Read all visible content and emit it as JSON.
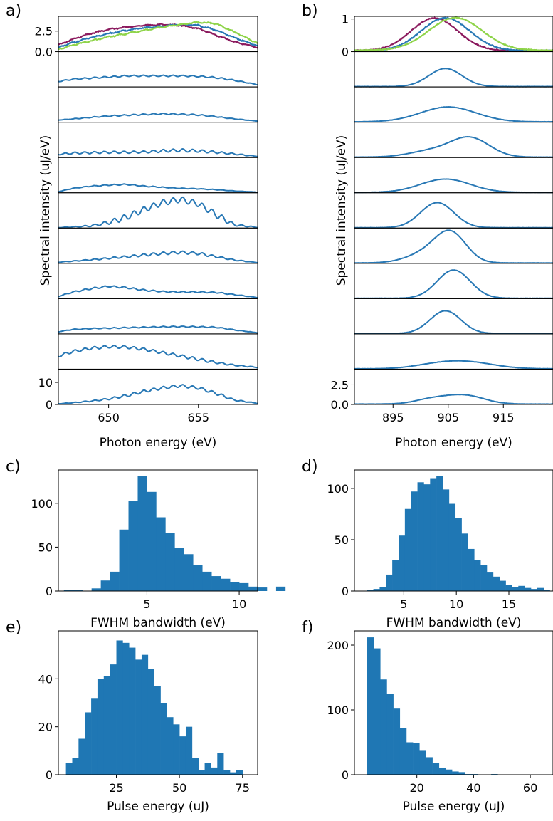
{
  "figure": {
    "panel_letters": [
      "a)",
      "b)",
      "c)",
      "d)",
      "e)",
      "f)"
    ],
    "colors": {
      "blue": "#2878b5",
      "purple": "#8b1a5e",
      "green": "#8fd44a",
      "hist": "#1f77b4",
      "axis": "#000000"
    }
  },
  "chart_data": [
    {
      "panel": "a)",
      "type": "line",
      "xlabel": "Photon energy (eV)",
      "ylabel": "Spectral intensity (uJ/eV)",
      "xlim": [
        647.2,
        658.3
      ],
      "xticks": [
        650,
        655
      ],
      "xticklabels": [
        "650",
        "655"
      ],
      "stack": [
        {
          "ylim": [
            0,
            4.3
          ],
          "yticks": [
            0,
            2.5
          ],
          "yticklabels": [
            "0.0",
            "2.5"
          ],
          "overlay": [
            {
              "color": "purple",
              "x": [
                647.2,
                648,
                649,
                650,
                651,
                652,
                653,
                654,
                655,
                656,
                657,
                658.3
              ],
              "y": [
                0.8,
                1.5,
                2.2,
                2.7,
                3.0,
                3.2,
                3.3,
                3.2,
                2.8,
                2.0,
                1.2,
                0.5
              ]
            },
            {
              "color": "blue",
              "x": [
                647.2,
                648,
                649,
                650,
                651,
                652,
                653,
                654,
                655,
                656,
                657,
                658.3
              ],
              "y": [
                0.5,
                1.1,
                1.7,
                2.2,
                2.6,
                2.9,
                3.1,
                3.3,
                3.2,
                2.6,
                1.7,
                0.7
              ]
            },
            {
              "color": "green",
              "x": [
                647.2,
                648,
                649,
                650,
                651,
                652,
                653,
                654,
                655,
                656,
                657,
                658.3
              ],
              "y": [
                0.3,
                0.8,
                1.3,
                1.8,
                2.2,
                2.6,
                3.0,
                3.3,
                3.6,
                3.4,
                2.4,
                1.0
              ]
            }
          ]
        },
        {
          "ylim": [
            0,
            16
          ],
          "x": [
            647.2,
            648,
            649,
            650,
            651,
            652,
            653,
            654,
            655,
            656,
            657,
            658.3
          ],
          "y": [
            2.5,
            3.5,
            4.0,
            4.5,
            5.0,
            5.0,
            5.0,
            5.0,
            4.8,
            4.2,
            3.0,
            1.0
          ],
          "ripple": 0.3
        },
        {
          "ylim": [
            0,
            16
          ],
          "x": [
            647.2,
            648,
            649,
            650,
            651,
            652,
            653,
            654,
            655,
            656,
            657,
            658.3
          ],
          "y": [
            1.0,
            1.5,
            2.2,
            2.8,
            3.2,
            3.5,
            3.8,
            3.6,
            3.3,
            2.5,
            1.5,
            0.5
          ],
          "ripple": 0.3
        },
        {
          "ylim": [
            0,
            16
          ],
          "x": [
            647.2,
            648,
            649,
            650,
            651,
            652,
            653,
            654,
            655,
            656,
            657,
            658.3
          ],
          "y": [
            1.5,
            2.0,
            2.2,
            2.4,
            2.4,
            2.5,
            3.0,
            3.3,
            3.0,
            2.4,
            1.6,
            0.5
          ],
          "ripple": 0.8
        },
        {
          "ylim": [
            0,
            16
          ],
          "x": [
            647.2,
            648,
            649,
            650,
            651,
            652,
            653,
            654,
            655,
            656,
            657,
            658.3
          ],
          "y": [
            0.5,
            2.0,
            3.0,
            3.5,
            3.8,
            3.0,
            2.5,
            2.0,
            1.8,
            1.4,
            0.8,
            0.3
          ],
          "ripple": 0.25
        },
        {
          "ylim": [
            0,
            16
          ],
          "x": [
            647.2,
            648,
            649,
            650,
            651,
            652,
            653,
            654,
            655,
            656,
            657,
            658.3
          ],
          "y": [
            0.2,
            0.5,
            1.0,
            2.5,
            5.0,
            8.5,
            11.5,
            13.0,
            11.0,
            6.0,
            1.5,
            0.3
          ],
          "ripple": 1.3
        },
        {
          "ylim": [
            0,
            16
          ],
          "x": [
            647.2,
            648,
            649,
            650,
            651,
            652,
            653,
            654,
            655,
            656,
            657,
            658.3
          ],
          "y": [
            0.5,
            1.0,
            1.6,
            2.3,
            3.0,
            3.8,
            4.5,
            5.0,
            4.5,
            3.0,
            1.5,
            0.3
          ],
          "ripple": 0.6
        },
        {
          "ylim": [
            0,
            16
          ],
          "x": [
            647.2,
            648,
            649,
            650,
            651,
            652,
            653,
            654,
            655,
            656,
            657,
            658.3
          ],
          "y": [
            1.0,
            3.0,
            4.5,
            5.6,
            5.0,
            3.8,
            3.2,
            3.0,
            3.0,
            2.8,
            1.8,
            0.5
          ],
          "ripple": 0.35
        },
        {
          "ylim": [
            0,
            16
          ],
          "x": [
            647.2,
            648,
            649,
            650,
            651,
            652,
            653,
            654,
            655,
            656,
            657,
            658.3
          ],
          "y": [
            1.0,
            2.0,
            2.4,
            2.6,
            2.8,
            3.0,
            3.2,
            3.3,
            3.2,
            3.0,
            1.8,
            0.5
          ],
          "ripple": 0.3
        },
        {
          "ylim": [
            0,
            16
          ],
          "x": [
            647.2,
            648,
            649,
            650,
            651,
            652,
            653,
            654,
            655,
            656,
            657,
            658.3
          ],
          "y": [
            6.0,
            8.0,
            9.5,
            10.2,
            10.0,
            9.0,
            7.5,
            6.0,
            4.5,
            3.0,
            1.8,
            0.8
          ],
          "ripple": 0.6
        },
        {
          "ylim": [
            0,
            16
          ],
          "yticks": [
            0,
            10
          ],
          "yticklabels": [
            "0",
            "10"
          ],
          "x": [
            647.2,
            648,
            649,
            650,
            651,
            652,
            653,
            654,
            655,
            656,
            657,
            658.3
          ],
          "y": [
            0.3,
            0.8,
            1.5,
            2.5,
            4.0,
            6.0,
            7.5,
            8.5,
            7.5,
            5.0,
            2.0,
            0.5
          ],
          "ripple": 0.6
        }
      ]
    },
    {
      "panel": "b)",
      "type": "line",
      "xlabel": "Photon energy (eV)",
      "ylabel": "Spectral intensity (uJ/eV)",
      "xlim": [
        888,
        924
      ],
      "xticks": [
        895,
        905,
        915
      ],
      "xticklabels": [
        "895",
        "905",
        "915"
      ],
      "stack": [
        {
          "ylim": [
            0,
            1.08
          ],
          "yticks": [
            0,
            1
          ],
          "yticklabels": [
            "0",
            "1"
          ],
          "overlay": [
            {
              "color": "purple",
              "center": 902.5,
              "sigma": 4.2,
              "amp": 1.0,
              "base": 0.03
            },
            {
              "color": "blue",
              "center": 904.5,
              "sigma": 4.4,
              "amp": 1.0,
              "base": 0.03
            },
            {
              "color": "green",
              "center": 906.3,
              "sigma": 4.8,
              "amp": 1.0,
              "base": 0.04
            }
          ]
        },
        {
          "ylim": [
            0,
            4.5
          ],
          "peaks": [
            {
              "center": 904.5,
              "sigma": 3.0,
              "amp": 2.3
            }
          ]
        },
        {
          "ylim": [
            0,
            4.5
          ],
          "peaks": [
            {
              "center": 905.0,
              "sigma": 5.0,
              "amp": 1.9
            }
          ]
        },
        {
          "ylim": [
            0,
            4.5
          ],
          "peaks": [
            {
              "center": 909.0,
              "sigma": 3.5,
              "amp": 2.4
            },
            {
              "center": 902.0,
              "sigma": 4.0,
              "amp": 0.8
            }
          ]
        },
        {
          "ylim": [
            0,
            4.5
          ],
          "peaks": [
            {
              "center": 904.5,
              "sigma": 4.5,
              "amp": 1.7
            }
          ]
        },
        {
          "ylim": [
            0,
            4.5
          ],
          "peaks": [
            {
              "center": 903.0,
              "sigma": 3.0,
              "amp": 3.2
            }
          ]
        },
        {
          "ylim": [
            0,
            4.5
          ],
          "peaks": [
            {
              "center": 905.5,
              "sigma": 2.8,
              "amp": 3.6
            },
            {
              "center": 901.0,
              "sigma": 3.5,
              "amp": 1.2
            }
          ]
        },
        {
          "ylim": [
            0,
            4.5
          ],
          "peaks": [
            {
              "center": 906.0,
              "sigma": 3.0,
              "amp": 3.6
            }
          ]
        },
        {
          "ylim": [
            0,
            4.5
          ],
          "peaks": [
            {
              "center": 904.5,
              "sigma": 2.8,
              "amp": 2.9
            }
          ]
        },
        {
          "ylim": [
            0,
            4.5
          ],
          "peaks": [
            {
              "center": 908.0,
              "sigma": 5.0,
              "amp": 0.9
            },
            {
              "center": 902.0,
              "sigma": 4.0,
              "amp": 0.3
            }
          ]
        },
        {
          "ylim": [
            0,
            4.5
          ],
          "yticks": [
            0,
            2.5
          ],
          "yticklabels": [
            "0.0",
            "2.5"
          ],
          "peaks": [
            {
              "center": 908.0,
              "sigma": 3.5,
              "amp": 1.1
            },
            {
              "center": 902.0,
              "sigma": 3.0,
              "amp": 0.6
            }
          ]
        }
      ]
    },
    {
      "panel": "c)",
      "type": "bar",
      "xlabel": "FWHM bandwidth (eV)",
      "xlim": [
        0.2,
        11.0
      ],
      "ylim": [
        0,
        138
      ],
      "xticks": [
        5,
        10
      ],
      "xticklabels": [
        "5",
        "10"
      ],
      "yticks": [
        0,
        50,
        100
      ],
      "yticklabels": [
        "0",
        "50",
        "100"
      ],
      "bin_start": 0.5,
      "bin_width": 0.5,
      "values": [
        1,
        1,
        0,
        3,
        12,
        22,
        70,
        103,
        131,
        113,
        84,
        66,
        49,
        42,
        30,
        22,
        17,
        14,
        10,
        9,
        5,
        4,
        0,
        5
      ]
    },
    {
      "panel": "d)",
      "type": "bar",
      "xlabel": "FWHM bandwidth (eV)",
      "xlim": [
        0.3,
        19.2
      ],
      "ylim": [
        0,
        118
      ],
      "xticks": [
        5,
        10,
        15
      ],
      "xticklabels": [
        "5",
        "10",
        "15"
      ],
      "yticks": [
        0,
        50,
        100
      ],
      "yticklabels": [
        "0",
        "50",
        "100"
      ],
      "bin_start": 1.5,
      "bin_width": 0.6,
      "values": [
        1,
        2,
        4,
        16,
        30,
        54,
        80,
        97,
        106,
        104,
        110,
        112,
        99,
        85,
        71,
        56,
        41,
        30,
        25,
        18,
        14,
        10,
        6,
        4,
        5,
        3,
        2,
        3,
        1
      ]
    },
    {
      "panel": "e)",
      "type": "bar",
      "xlabel": "Pulse energy (uJ)",
      "xlim": [
        2,
        81
      ],
      "ylim": [
        0,
        60
      ],
      "xticks": [
        25,
        50,
        75
      ],
      "xticklabels": [
        "25",
        "50",
        "75"
      ],
      "yticks": [
        0,
        20,
        40
      ],
      "yticklabels": [
        "0",
        "20",
        "40"
      ],
      "bin_start": 5,
      "bin_width": 2.5,
      "values": [
        5,
        7,
        15,
        26,
        32,
        40,
        41,
        46,
        56,
        55,
        53,
        48,
        50,
        44,
        37,
        30,
        24,
        21,
        16,
        20,
        7,
        2,
        5,
        3,
        9,
        2,
        1,
        2
      ]
    },
    {
      "panel": "f)",
      "type": "bar",
      "xlabel": "Pulse energy (uJ)",
      "xlim": [
        -2,
        68
      ],
      "ylim": [
        0,
        222
      ],
      "xticks": [
        20,
        40,
        60
      ],
      "xticklabels": [
        "20",
        "40",
        "60"
      ],
      "yticks": [
        0,
        100,
        200
      ],
      "yticklabels": [
        "0",
        "100",
        "200"
      ],
      "bin_start": 2.5,
      "bin_width": 2.3,
      "values": [
        212,
        195,
        147,
        125,
        102,
        72,
        50,
        49,
        38,
        27,
        18,
        11,
        8,
        5,
        4,
        1,
        1,
        0,
        0,
        1,
        0,
        0,
        0
      ]
    }
  ]
}
